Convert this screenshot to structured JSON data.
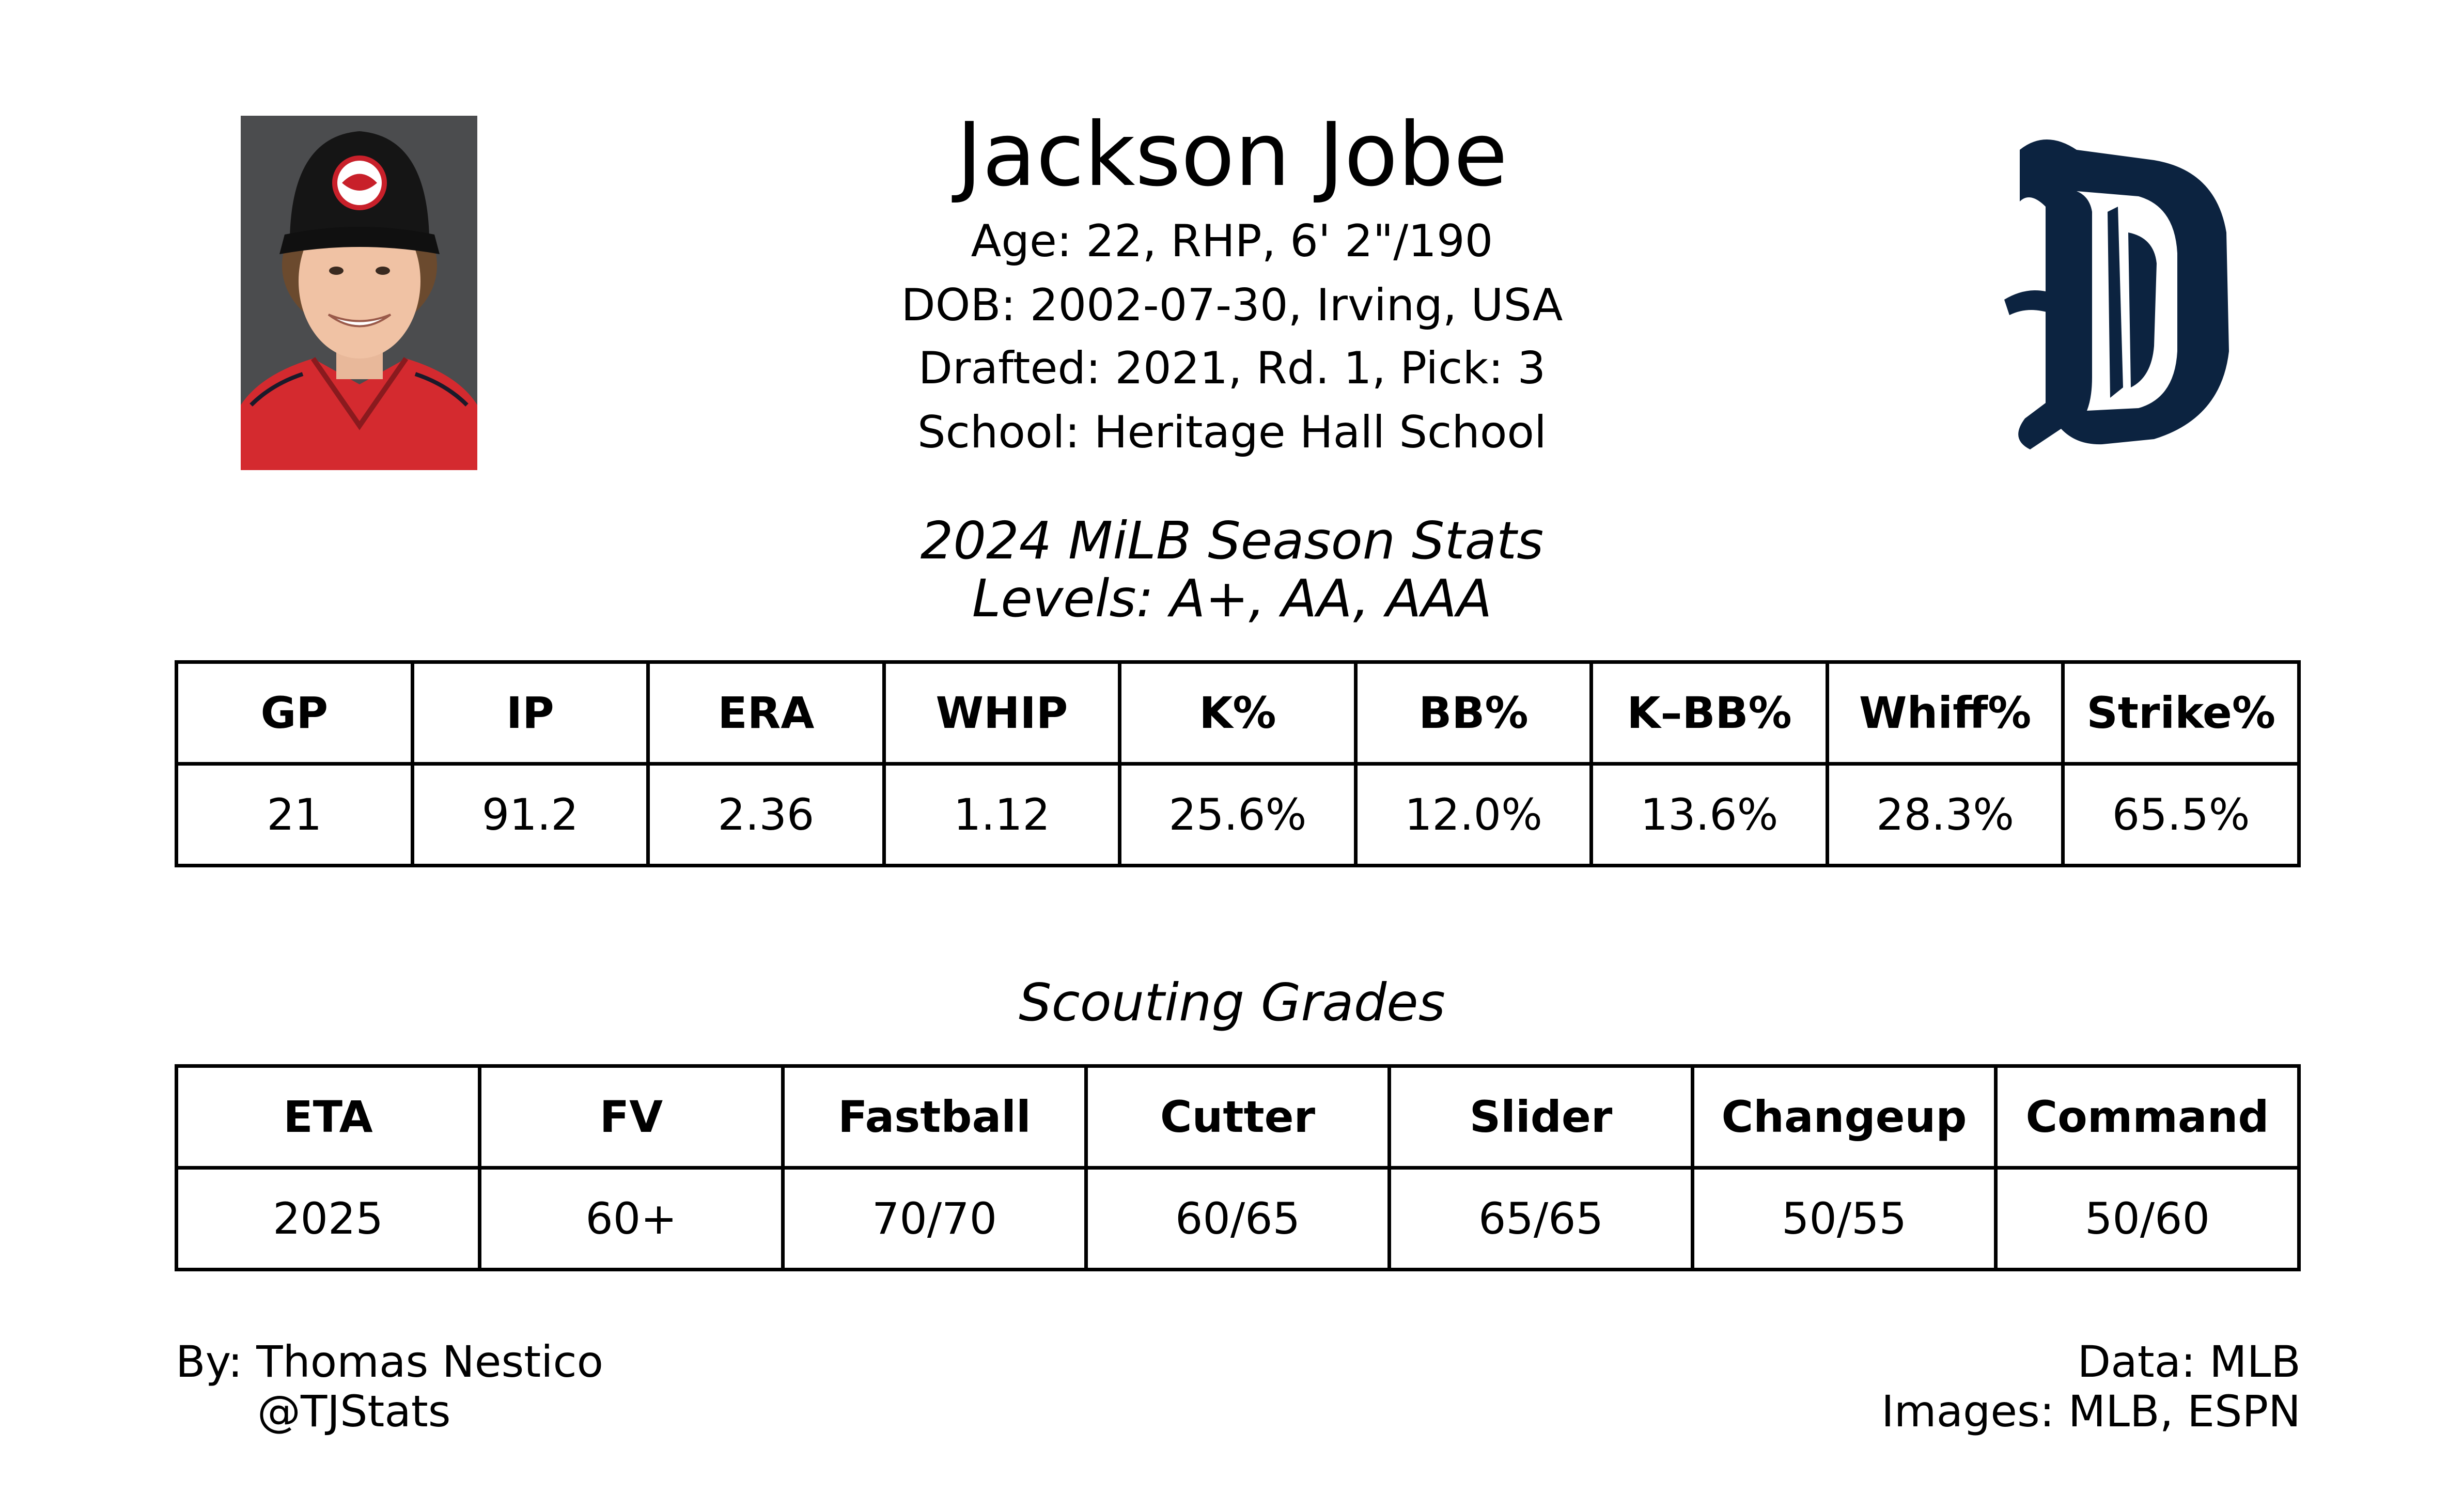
{
  "player": {
    "name": "Jackson Jobe",
    "age_line": "Age: 22, RHP, 6' 2\"/190",
    "dob_line": "DOB: 2002-07-30, Irving, USA",
    "draft_line": "Drafted: 2021, Rd. 1, Pick: 3",
    "school_line": "School: Heritage Hall School"
  },
  "season": {
    "title": "2024 MiLB Season Stats",
    "levels": "Levels: A+, AA, AAA",
    "headers": [
      "GP",
      "IP",
      "ERA",
      "WHIP",
      "K%",
      "BB%",
      "K–BB%",
      "Whiff%",
      "Strike%"
    ],
    "values": [
      "21",
      "91.2",
      "2.36",
      "1.12",
      "25.6%",
      "12.0%",
      "13.6%",
      "28.3%",
      "65.5%"
    ]
  },
  "grades": {
    "title": "Scouting Grades",
    "headers": [
      "ETA",
      "FV",
      "Fastball",
      "Cutter",
      "Slider",
      "Changeup",
      "Command"
    ],
    "values": [
      "2025",
      "60+",
      "70/70",
      "60/65",
      "65/65",
      "50/55",
      "50/60"
    ]
  },
  "footer": {
    "by": "By: Thomas Nestico",
    "handle": "@TJStats",
    "data": "Data: MLB",
    "images": "Images: MLB, ESPN"
  },
  "colors": {
    "team_navy": "#0c2340",
    "jersey_red": "#d42a2f",
    "photo_bg": "#4b4c4e"
  },
  "icons": {
    "headshot": "player-headshot",
    "team_logo": "tigers-old-english-d-logo"
  }
}
